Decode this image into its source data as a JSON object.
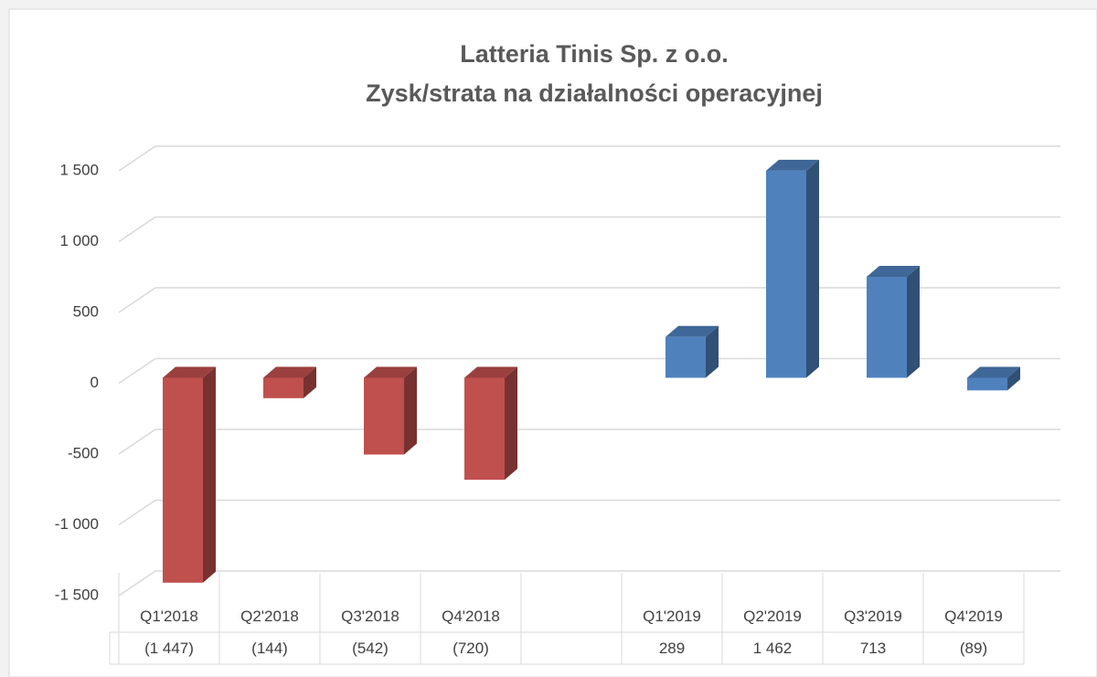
{
  "chart_data": {
    "type": "bar3d",
    "title": [
      "Latteria Tinis Sp. z o.o.",
      "Zysk/strata na działalności operacyjnej"
    ],
    "categories": [
      "Q1'2018",
      "Q2'2018",
      "Q3'2018",
      "Q4'2018",
      null,
      "Q1'2019",
      "Q2'2019",
      "Q3'2019",
      "Q4'2019"
    ],
    "values": [
      -1447,
      -144,
      -542,
      -720,
      null,
      289,
      1462,
      713,
      -89
    ],
    "value_labels": [
      "(1 447)",
      "(144)",
      "(542)",
      "(720)",
      null,
      "289",
      "1 462",
      "713",
      "(89)"
    ],
    "colors": [
      "#c0504d",
      "#c0504d",
      "#c0504d",
      "#c0504d",
      null,
      "#4f81bd",
      "#4f81bd",
      "#4f81bd",
      "#4f81bd"
    ],
    "ylim": [
      -1500,
      1500
    ],
    "yticks": [
      {
        "value": -1500,
        "label": "-1 500"
      },
      {
        "value": -1000,
        "label": "-1 000"
      },
      -500,
      0,
      500,
      {
        "value": 1000,
        "label": "1 000"
      },
      {
        "value": 1500,
        "label": "1 500"
      }
    ],
    "grid": true
  }
}
